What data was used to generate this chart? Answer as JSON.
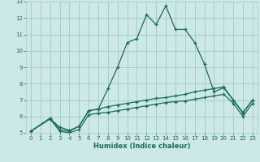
{
  "xlabel": "Humidex (Indice chaleur)",
  "bg_color": "#cce8e8",
  "grid_color": "#aacccc",
  "line_color": "#1a6b5a",
  "xlim": [
    -0.5,
    23.5
  ],
  "ylim": [
    5,
    13
  ],
  "xticks": [
    0,
    1,
    2,
    3,
    4,
    5,
    6,
    7,
    8,
    9,
    10,
    11,
    12,
    13,
    14,
    15,
    16,
    17,
    18,
    19,
    20,
    21,
    22,
    23
  ],
  "yticks": [
    5,
    6,
    7,
    8,
    9,
    10,
    11,
    12,
    13
  ],
  "line1_x": [
    0,
    2,
    3,
    4,
    5,
    6,
    7,
    8,
    9,
    10,
    11,
    12,
    13,
    14,
    15,
    16,
    17,
    18,
    19,
    20,
    21,
    22,
    23
  ],
  "line1_y": [
    5.1,
    5.9,
    5.2,
    5.1,
    5.4,
    6.35,
    6.45,
    7.7,
    9.0,
    10.5,
    10.75,
    12.2,
    11.6,
    12.75,
    11.3,
    11.3,
    10.5,
    9.2,
    7.5,
    7.75,
    7.0,
    6.2,
    7.0
  ],
  "line2_x": [
    0,
    2,
    3,
    4,
    5,
    6,
    7,
    8,
    9,
    10,
    11,
    12,
    13,
    14,
    15,
    16,
    17,
    18,
    19,
    20,
    21,
    22,
    23
  ],
  "line2_y": [
    5.1,
    5.85,
    5.35,
    5.15,
    5.4,
    6.35,
    6.45,
    6.6,
    6.7,
    6.8,
    6.9,
    7.0,
    7.1,
    7.15,
    7.25,
    7.35,
    7.5,
    7.6,
    7.7,
    7.8,
    7.0,
    6.25,
    7.0
  ],
  "line3_x": [
    0,
    2,
    3,
    4,
    5,
    6,
    7,
    8,
    9,
    10,
    11,
    12,
    13,
    14,
    15,
    16,
    17,
    18,
    19,
    20,
    21,
    22,
    23
  ],
  "line3_y": [
    5.1,
    5.85,
    5.1,
    5.0,
    5.2,
    6.1,
    6.2,
    6.25,
    6.35,
    6.45,
    6.55,
    6.65,
    6.75,
    6.85,
    6.9,
    6.95,
    7.05,
    7.15,
    7.25,
    7.35,
    6.8,
    6.0,
    6.8
  ]
}
